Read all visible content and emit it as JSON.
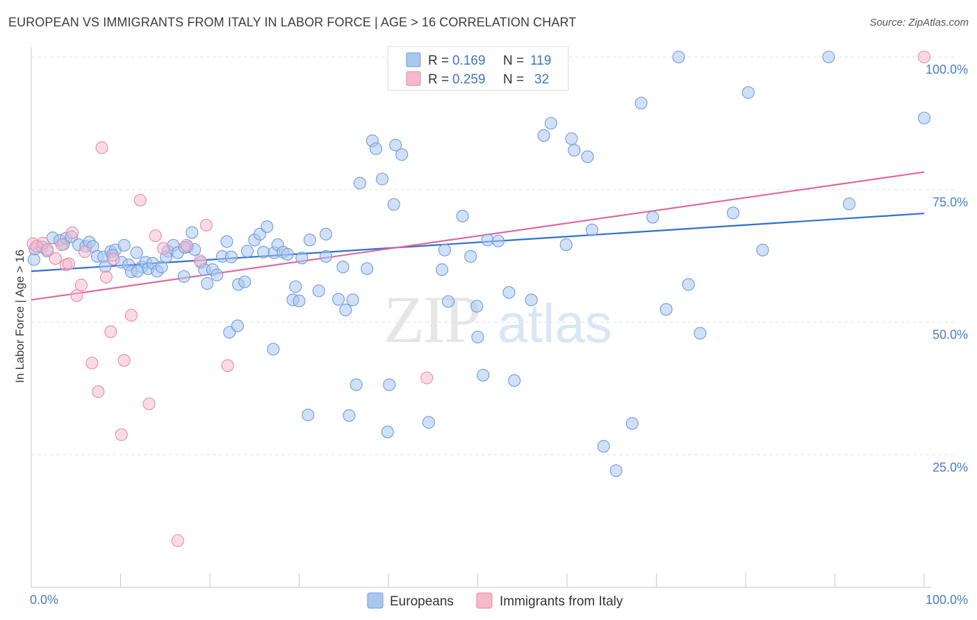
{
  "title": "EUROPEAN VS IMMIGRANTS FROM ITALY IN LABOR FORCE | AGE > 16 CORRELATION CHART",
  "source": "Source: ZipAtlas.com",
  "watermark": {
    "zip": "ZIP",
    "atlas": "atlas"
  },
  "legend": {
    "rows": [
      {
        "r_label": "R =",
        "r_value": "0.169",
        "n_label": "N =",
        "n_value": "119",
        "color": "#a9c6ee"
      },
      {
        "r_label": "R =",
        "r_value": "0.259",
        "n_label": "N =",
        "n_value": "32",
        "color": "#f6b8cb"
      }
    ]
  },
  "bottom_legend": [
    {
      "label": "Europeans",
      "color": "#a9c6ee"
    },
    {
      "label": "Immigrants from Italy",
      "color": "#f6b8cb"
    }
  ],
  "chart_data": {
    "type": "scatter",
    "ylabel": "In Labor Force | Age > 16",
    "x_tick_labels": [
      "0.0%",
      "100.0%"
    ],
    "y_tick_labels": [
      "100.0%",
      "75.0%",
      "50.0%",
      "25.0%"
    ],
    "y_ticks": [
      100,
      75,
      50,
      25
    ],
    "xlim": [
      0,
      100
    ],
    "ylim": [
      0,
      101
    ],
    "grid": true,
    "series": [
      {
        "name": "Europeans",
        "color": "#6f9bdc",
        "fill": "#a9c6ee",
        "trend": {
          "x": [
            0,
            100
          ],
          "y": [
            59.6,
            70.5
          ]
        },
        "points": [
          [
            0.3,
            61.8
          ],
          [
            0.4,
            63.8
          ],
          [
            1.2,
            64.2
          ],
          [
            1.8,
            63.4
          ],
          [
            2.4,
            65.9
          ],
          [
            3.2,
            65.4
          ],
          [
            3.6,
            64.7
          ],
          [
            3.9,
            65.8
          ],
          [
            4.5,
            66.1
          ],
          [
            5.3,
            64.6
          ],
          [
            6.1,
            64.3
          ],
          [
            6.5,
            65.1
          ],
          [
            6.9,
            64.3
          ],
          [
            7.4,
            62.4
          ],
          [
            8.1,
            62.3
          ],
          [
            8.3,
            60.5
          ],
          [
            8.9,
            63.3
          ],
          [
            9.4,
            63.6
          ],
          [
            10.1,
            61.3
          ],
          [
            10.4,
            64.5
          ],
          [
            10.9,
            60.8
          ],
          [
            11.2,
            59.5
          ],
          [
            11.8,
            63.1
          ],
          [
            12.4,
            60.4
          ],
          [
            12.8,
            61.3
          ],
          [
            13.1,
            60.1
          ],
          [
            13.6,
            61.1
          ],
          [
            14.1,
            59.6
          ],
          [
            14.6,
            60.4
          ],
          [
            15.3,
            63.4
          ],
          [
            15.9,
            64.5
          ],
          [
            16.4,
            63.1
          ],
          [
            17.1,
            58.6
          ],
          [
            17.5,
            64.2
          ],
          [
            18.0,
            66.9
          ],
          [
            18.3,
            63.7
          ],
          [
            19.0,
            61.3
          ],
          [
            19.4,
            59.9
          ],
          [
            19.7,
            57.3
          ],
          [
            20.3,
            59.9
          ],
          [
            20.8,
            58.9
          ],
          [
            21.4,
            62.4
          ],
          [
            21.9,
            65.2
          ],
          [
            22.4,
            62.3
          ],
          [
            23.2,
            57.1
          ],
          [
            23.9,
            57.6
          ],
          [
            25.0,
            65.5
          ],
          [
            25.6,
            66.6
          ],
          [
            26.0,
            63.2
          ],
          [
            26.4,
            68.0
          ],
          [
            27.2,
            63.1
          ],
          [
            27.6,
            64.6
          ],
          [
            28.2,
            63.2
          ],
          [
            28.7,
            62.8
          ],
          [
            29.3,
            54.2
          ],
          [
            29.6,
            56.7
          ],
          [
            30.3,
            62.1
          ],
          [
            31.2,
            65.5
          ],
          [
            32.2,
            55.9
          ],
          [
            33.0,
            66.6
          ],
          [
            34.4,
            54.3
          ],
          [
            35.2,
            52.3
          ],
          [
            36.0,
            54.2
          ],
          [
            36.8,
            76.2
          ],
          [
            37.6,
            60.1
          ],
          [
            38.2,
            84.2
          ],
          [
            38.6,
            82.7
          ],
          [
            39.3,
            77.0
          ],
          [
            40.6,
            72.2
          ],
          [
            40.8,
            83.4
          ],
          [
            41.5,
            81.6
          ],
          [
            46.0,
            59.9
          ],
          [
            46.7,
            53.9
          ],
          [
            48.3,
            70.0
          ],
          [
            49.2,
            62.4
          ],
          [
            49.9,
            53.0
          ],
          [
            50.0,
            47.2
          ],
          [
            50.6,
            40.0
          ],
          [
            51.1,
            65.5
          ],
          [
            52.3,
            65.3
          ],
          [
            53.5,
            55.6
          ],
          [
            54.1,
            39.0
          ],
          [
            56.0,
            54.2
          ],
          [
            57.4,
            85.2
          ],
          [
            58.2,
            87.5
          ],
          [
            59.9,
            64.6
          ],
          [
            60.5,
            84.6
          ],
          [
            62.3,
            81.2
          ],
          [
            62.8,
            67.4
          ],
          [
            64.1,
            26.6
          ],
          [
            65.5,
            22.0
          ],
          [
            67.3,
            30.9
          ],
          [
            68.3,
            91.3
          ],
          [
            69.6,
            69.8
          ],
          [
            71.1,
            52.4
          ],
          [
            72.5,
            100.0
          ],
          [
            73.6,
            57.1
          ],
          [
            74.9,
            47.9
          ],
          [
            78.6,
            70.6
          ],
          [
            80.3,
            93.3
          ],
          [
            81.9,
            63.6
          ],
          [
            89.3,
            100.0
          ],
          [
            91.6,
            72.3
          ],
          [
            100.0,
            88.5
          ],
          [
            22.2,
            48.1
          ],
          [
            23.1,
            49.3
          ],
          [
            27.1,
            44.9
          ],
          [
            35.6,
            32.4
          ],
          [
            39.9,
            29.3
          ],
          [
            40.1,
            38.2
          ],
          [
            44.5,
            31.1
          ],
          [
            46.3,
            63.6
          ],
          [
            31.0,
            32.5
          ],
          [
            30.0,
            54.0
          ],
          [
            33.0,
            62.4
          ],
          [
            17.2,
            64.1
          ],
          [
            15.1,
            62.3
          ],
          [
            11.9,
            59.6
          ],
          [
            9.1,
            62.6
          ],
          [
            24.2,
            63.4
          ],
          [
            34.9,
            60.4
          ],
          [
            36.4,
            38.2
          ],
          [
            60.8,
            82.4
          ]
        ]
      },
      {
        "name": "Immigrants from Italy",
        "color": "#e88aa8",
        "fill": "#f6b8cb",
        "trend": {
          "x": [
            0,
            100
          ],
          "y": [
            54.2,
            78.3
          ]
        },
        "points": [
          [
            0.2,
            64.8
          ],
          [
            1.3,
            64.9
          ],
          [
            1.8,
            63.7
          ],
          [
            2.7,
            62.0
          ],
          [
            3.4,
            64.6
          ],
          [
            3.9,
            60.8
          ],
          [
            4.2,
            61.0
          ],
          [
            4.6,
            66.9
          ],
          [
            5.1,
            55.0
          ],
          [
            5.6,
            57.0
          ],
          [
            6.0,
            63.3
          ],
          [
            6.8,
            42.3
          ],
          [
            7.5,
            36.9
          ],
          [
            7.9,
            82.9
          ],
          [
            8.4,
            58.5
          ],
          [
            8.9,
            48.2
          ],
          [
            9.2,
            61.9
          ],
          [
            10.1,
            28.8
          ],
          [
            10.4,
            42.8
          ],
          [
            11.2,
            51.3
          ],
          [
            12.2,
            73.0
          ],
          [
            13.2,
            34.6
          ],
          [
            13.9,
            66.3
          ],
          [
            14.8,
            63.9
          ],
          [
            16.4,
            8.8
          ],
          [
            17.4,
            64.5
          ],
          [
            18.9,
            61.6
          ],
          [
            19.6,
            68.3
          ],
          [
            22.0,
            41.8
          ],
          [
            44.3,
            39.5
          ],
          [
            100.0,
            100.0
          ],
          [
            0.6,
            64.3
          ]
        ]
      }
    ]
  }
}
